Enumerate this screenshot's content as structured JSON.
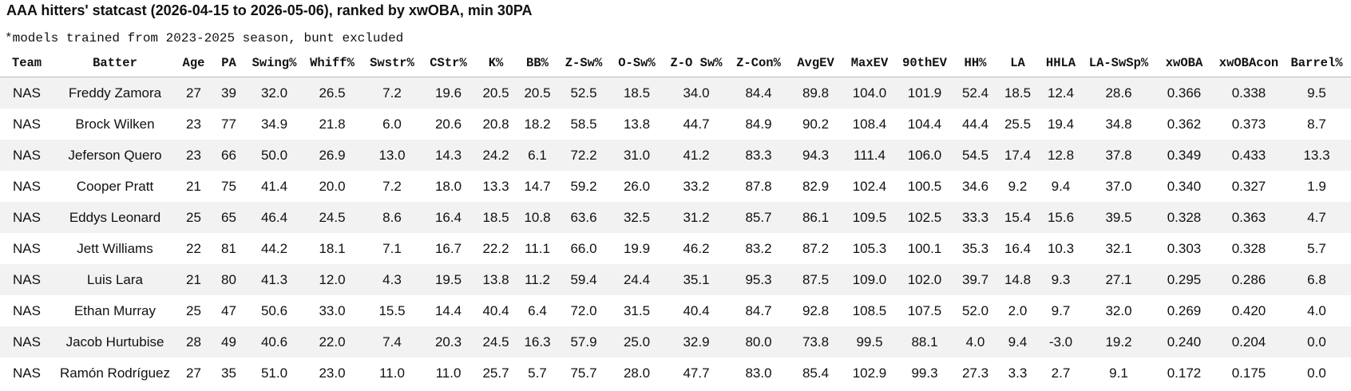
{
  "header": {
    "title": "AAA hitters' statcast (2026-04-15 to 2026-05-06), ranked by xwOBA, min 30PA",
    "note": "*models trained from 2023-2025 season, bunt excluded"
  },
  "table": {
    "columns": [
      "Team",
      "Batter",
      "Age",
      "PA",
      "Swing%",
      "Whiff%",
      "Swstr%",
      "CStr%",
      "K%",
      "BB%",
      "Z-Sw%",
      "O-Sw%",
      "Z-O Sw%",
      "Z-Con%",
      "AvgEV",
      "MaxEV",
      "90thEV",
      "HH%",
      "LA",
      "HHLA",
      "LA-SwSp%",
      "xwOBA",
      "xwOBAcon",
      "Barrel%"
    ],
    "rows": [
      [
        "NAS",
        "Freddy Zamora",
        "27",
        "39",
        "32.0",
        "26.5",
        "7.2",
        "19.6",
        "20.5",
        "20.5",
        "52.5",
        "18.5",
        "34.0",
        "84.4",
        "89.8",
        "104.0",
        "101.9",
        "52.4",
        "18.5",
        "12.4",
        "28.6",
        "0.366",
        "0.338",
        "9.5"
      ],
      [
        "NAS",
        "Brock Wilken",
        "23",
        "77",
        "34.9",
        "21.8",
        "6.0",
        "20.6",
        "20.8",
        "18.2",
        "58.5",
        "13.8",
        "44.7",
        "84.9",
        "90.2",
        "108.4",
        "104.4",
        "44.4",
        "25.5",
        "19.4",
        "34.8",
        "0.362",
        "0.373",
        "8.7"
      ],
      [
        "NAS",
        "Jeferson Quero",
        "23",
        "66",
        "50.0",
        "26.9",
        "13.0",
        "14.3",
        "24.2",
        "6.1",
        "72.2",
        "31.0",
        "41.2",
        "83.3",
        "94.3",
        "111.4",
        "106.0",
        "54.5",
        "17.4",
        "12.8",
        "37.8",
        "0.349",
        "0.433",
        "13.3"
      ],
      [
        "NAS",
        "Cooper Pratt",
        "21",
        "75",
        "41.4",
        "20.0",
        "7.2",
        "18.0",
        "13.3",
        "14.7",
        "59.2",
        "26.0",
        "33.2",
        "87.8",
        "82.9",
        "102.4",
        "100.5",
        "34.6",
        "9.2",
        "9.4",
        "37.0",
        "0.340",
        "0.327",
        "1.9"
      ],
      [
        "NAS",
        "Eddys Leonard",
        "25",
        "65",
        "46.4",
        "24.5",
        "8.6",
        "16.4",
        "18.5",
        "10.8",
        "63.6",
        "32.5",
        "31.2",
        "85.7",
        "86.1",
        "109.5",
        "102.5",
        "33.3",
        "15.4",
        "15.6",
        "39.5",
        "0.328",
        "0.363",
        "4.7"
      ],
      [
        "NAS",
        "Jett Williams",
        "22",
        "81",
        "44.2",
        "18.1",
        "7.1",
        "16.7",
        "22.2",
        "11.1",
        "66.0",
        "19.9",
        "46.2",
        "83.2",
        "87.2",
        "105.3",
        "100.1",
        "35.3",
        "16.4",
        "10.3",
        "32.1",
        "0.303",
        "0.328",
        "5.7"
      ],
      [
        "NAS",
        "Luis Lara",
        "21",
        "80",
        "41.3",
        "12.0",
        "4.3",
        "19.5",
        "13.8",
        "11.2",
        "59.4",
        "24.4",
        "35.1",
        "95.3",
        "87.5",
        "109.0",
        "102.0",
        "39.7",
        "14.8",
        "9.3",
        "27.1",
        "0.295",
        "0.286",
        "6.8"
      ],
      [
        "NAS",
        "Ethan Murray",
        "25",
        "47",
        "50.6",
        "33.0",
        "15.5",
        "14.4",
        "40.4",
        "6.4",
        "72.0",
        "31.5",
        "40.4",
        "84.7",
        "92.8",
        "108.5",
        "107.5",
        "52.0",
        "2.0",
        "9.7",
        "32.0",
        "0.269",
        "0.420",
        "4.0"
      ],
      [
        "NAS",
        "Jacob Hurtubise",
        "28",
        "49",
        "40.6",
        "22.0",
        "7.4",
        "20.3",
        "24.5",
        "16.3",
        "57.9",
        "25.0",
        "32.9",
        "80.0",
        "73.8",
        "99.5",
        "88.1",
        "4.0",
        "9.4",
        "-3.0",
        "19.2",
        "0.240",
        "0.204",
        "0.0"
      ],
      [
        "NAS",
        "Ramón Rodríguez",
        "27",
        "35",
        "51.0",
        "23.0",
        "11.0",
        "11.0",
        "25.7",
        "5.7",
        "75.7",
        "28.0",
        "47.7",
        "83.0",
        "85.4",
        "102.9",
        "99.3",
        "27.3",
        "3.3",
        "2.7",
        "9.1",
        "0.172",
        "0.175",
        "0.0"
      ]
    ]
  }
}
